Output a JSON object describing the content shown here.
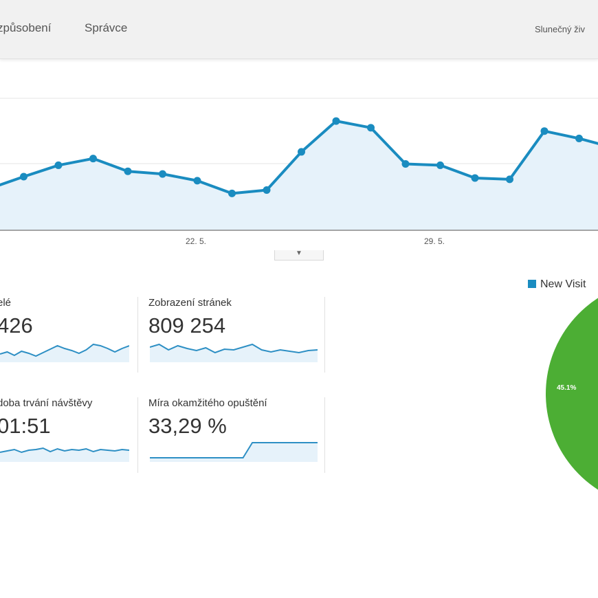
{
  "nav": {
    "items": [
      {
        "label": "způsobení"
      },
      {
        "label": "Správce"
      }
    ],
    "account_label": "Slunečný živ"
  },
  "chart_data": {
    "type": "line",
    "x_tick_labels": [
      "22. 5.",
      "29. 5."
    ],
    "values": [
      62,
      80,
      97,
      107,
      88,
      84,
      74,
      55,
      60,
      117,
      163,
      153,
      99,
      97,
      78,
      76,
      148,
      137,
      123
    ],
    "colors": {
      "line": "#1a8cc0",
      "fill": "#e6f2fa",
      "grid": "#e4e4e4"
    }
  },
  "metrics": [
    {
      "label": "elé",
      "value": " 426",
      "sparkline": [
        20,
        17,
        22,
        16,
        19,
        23,
        18,
        13,
        8,
        12,
        15,
        19,
        14,
        6,
        8,
        12,
        17,
        12,
        8
      ]
    },
    {
      "label": "Zobrazení stránek",
      "value": "809 254",
      "sparkline": [
        10,
        6,
        14,
        8,
        12,
        15,
        11,
        18,
        13,
        14,
        10,
        6,
        14,
        17,
        14,
        16,
        18,
        15,
        14
      ]
    },
    {
      "label": "doba trvání návštěvy",
      "value": "01:51",
      "sparkline": [
        18,
        16,
        14,
        18,
        15,
        14,
        12,
        17,
        13,
        16,
        14,
        15,
        13,
        17,
        14,
        15,
        16,
        14,
        15
      ]
    },
    {
      "label": "Míra okamžitého opuštění",
      "value": "33,29 %",
      "sparkline": [
        26,
        26,
        26,
        26,
        26,
        26,
        26,
        26,
        26,
        26,
        26,
        4,
        4,
        4,
        4,
        4,
        4,
        4,
        4
      ]
    }
  ],
  "pie": {
    "legend_label": "New Visit",
    "legend_color": "#1a8cc0",
    "slice_label": "45.1%",
    "slice_value": 45.1,
    "slice_color": "#4cae34"
  }
}
